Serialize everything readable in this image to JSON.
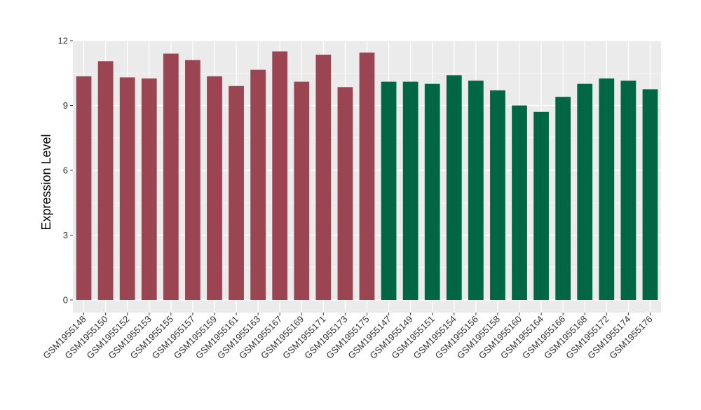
{
  "chart_data": {
    "type": "bar",
    "title": "",
    "xlabel": "",
    "ylabel": "Expression Level",
    "ylim": [
      0,
      12
    ],
    "yticks": [
      0,
      3,
      6,
      9,
      12
    ],
    "grid": true,
    "legend": "none",
    "colors": {
      "panel_background": "#ebebeb",
      "gridline": "#ffffff",
      "group_a": "#9b4452",
      "group_b": "#006643"
    },
    "categories": [
      "GSM1955148",
      "GSM1955150",
      "GSM1955152",
      "GSM1955153",
      "GSM1955155",
      "GSM1955157",
      "GSM1955159",
      "GSM1955161",
      "GSM1955163",
      "GSM1955167",
      "GSM1955169",
      "GSM1955171",
      "GSM1955173",
      "GSM1955175",
      "GSM1955147",
      "GSM1955149",
      "GSM1955151",
      "GSM1955154",
      "GSM1955156",
      "GSM1955158",
      "GSM1955160",
      "GSM1955164",
      "GSM1955166",
      "GSM1955168",
      "GSM1955172",
      "GSM1955174",
      "GSM1955176"
    ],
    "values": [
      10.35,
      11.05,
      10.3,
      10.25,
      11.4,
      11.1,
      10.35,
      9.9,
      10.65,
      11.5,
      10.1,
      11.35,
      9.85,
      11.45,
      10.1,
      10.1,
      10.0,
      10.4,
      10.15,
      9.7,
      9.0,
      8.7,
      9.4,
      10.0,
      10.25,
      10.15,
      9.75
    ],
    "groups": [
      "a",
      "a",
      "a",
      "a",
      "a",
      "a",
      "a",
      "a",
      "a",
      "a",
      "a",
      "a",
      "a",
      "a",
      "b",
      "b",
      "b",
      "b",
      "b",
      "b",
      "b",
      "b",
      "b",
      "b",
      "b",
      "b",
      "b"
    ]
  }
}
